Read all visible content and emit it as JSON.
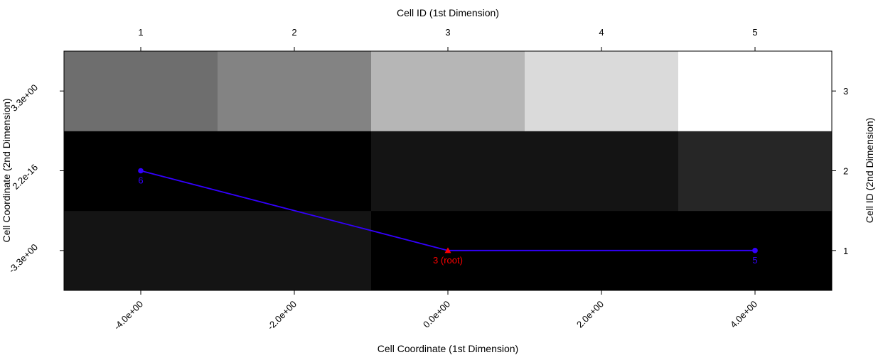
{
  "chart_data": {
    "type": "heatmap",
    "title": "",
    "x_bottom": {
      "label": "Cell Coordinate (1st Dimension)",
      "ticks": [
        -4,
        -2,
        0,
        2,
        4
      ],
      "tick_labels": [
        "-4.0e+00",
        "-2.0e+00",
        "0.0e+00",
        "2.0e+00",
        "4.0e+00"
      ],
      "range": [
        -5,
        5
      ]
    },
    "x_top": {
      "label": "Cell ID (1st Dimension)",
      "tick_labels": [
        "1",
        "2",
        "3",
        "4",
        "5"
      ]
    },
    "y_left": {
      "label": "Cell Coordinate (2nd Dimension)",
      "ticks": [
        -3.3,
        0,
        3.3
      ],
      "tick_labels": [
        "-3.3e+00",
        "2.2e-16",
        "3.3e+00"
      ],
      "range": [
        -4.95,
        4.95
      ]
    },
    "y_right": {
      "label": "Cell ID (2nd Dimension)",
      "tick_labels": [
        "1",
        "2",
        "3"
      ]
    },
    "columns": [
      1,
      2,
      3,
      4,
      5
    ],
    "rows": [
      1,
      2,
      3
    ],
    "cell_colors": [
      [
        "#141414",
        "#141414",
        "#000000",
        "#000000",
        "#000000"
      ],
      [
        "#000000",
        "#000000",
        "#141414",
        "#141414",
        "#262626"
      ],
      [
        "#6e6e6e",
        "#838383",
        "#b6b6b6",
        "#dadada",
        "#ffffff"
      ]
    ],
    "path": {
      "color": "#3300ff",
      "points": [
        {
          "x": -4,
          "y": 0,
          "label": "6",
          "marker": "circle",
          "color": "#3300ff"
        },
        {
          "x": 0,
          "y": -3.3,
          "label": "3 (root)",
          "marker": "triangle",
          "color": "#ff0000"
        },
        {
          "x": 4,
          "y": -3.3,
          "label": "5",
          "marker": "circle",
          "color": "#3300ff"
        }
      ]
    }
  }
}
